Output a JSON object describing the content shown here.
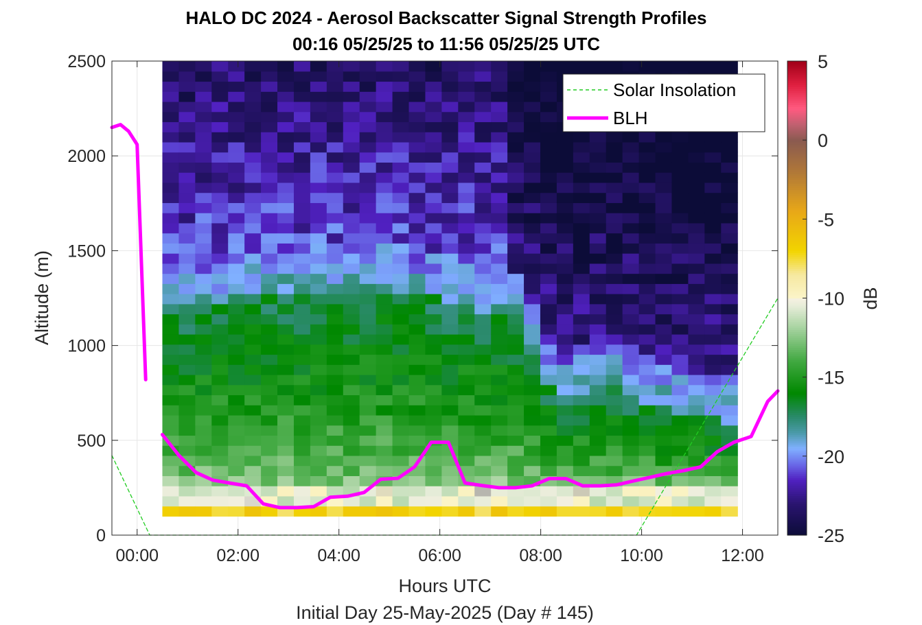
{
  "chart_data": {
    "type": "heatmap",
    "title": "HALO DC 2024 - Aerosol Backscatter Signal Strength Profiles",
    "subtitle": "00:16 05/25/25 to 11:56 05/25/25  UTC",
    "xlabel": "Hours UTC",
    "xlabel2": "Initial Day 25-May-2025 (Day # 145)",
    "ylabel": "Altitude (m)",
    "xlim": [
      -0.5,
      12.7
    ],
    "ylim": [
      0,
      2500
    ],
    "xticks": [
      0,
      2,
      4,
      6,
      8,
      10,
      12
    ],
    "xtick_labels": [
      "00:00",
      "02:00",
      "04:00",
      "06:00",
      "08:00",
      "10:00",
      "12:00"
    ],
    "yticks": [
      0,
      500,
      1000,
      1500,
      2000,
      2500
    ],
    "ytick_labels": [
      "0",
      "500",
      "1000",
      "1500",
      "2000",
      "2500"
    ],
    "grid": true,
    "colorbar": {
      "label": "dB",
      "range": [
        -25,
        5
      ],
      "ticks": [
        5,
        0,
        -5,
        -10,
        -15,
        -20,
        -25
      ],
      "tick_labels": [
        "5",
        "0",
        "-5",
        "-10",
        "-15",
        "-20",
        "-25"
      ],
      "stops": [
        {
          "v": -25,
          "c": "#0c0c38"
        },
        {
          "v": -23,
          "c": "#2a1470"
        },
        {
          "v": -21.5,
          "c": "#5020c0"
        },
        {
          "v": -20.5,
          "c": "#6a6ae8"
        },
        {
          "v": -19.5,
          "c": "#80b0ff"
        },
        {
          "v": -18.5,
          "c": "#4a9aa8"
        },
        {
          "v": -17.5,
          "c": "#2a8a6a"
        },
        {
          "v": -16,
          "c": "#008800"
        },
        {
          "v": -14,
          "c": "#40a840"
        },
        {
          "v": -12,
          "c": "#a0d09a"
        },
        {
          "v": -10.5,
          "c": "#e6ecd8"
        },
        {
          "v": -10.05,
          "c": "#f4f0e0"
        },
        {
          "v": -10,
          "c": "#a8a8a8"
        },
        {
          "v": -9.95,
          "c": "#fbf4c8"
        },
        {
          "v": -8.5,
          "c": "#f6e8a0"
        },
        {
          "v": -7,
          "c": "#f2d400"
        },
        {
          "v": -4.5,
          "c": "#e8a818"
        },
        {
          "v": -2,
          "c": "#b07838"
        },
        {
          "v": 0,
          "c": "#8a5a50"
        },
        {
          "v": 1,
          "c": "#c06070"
        },
        {
          "v": 2,
          "c": "#ff5a80"
        },
        {
          "v": 3.5,
          "c": "#e02040"
        },
        {
          "v": 5,
          "c": "#a00018"
        }
      ]
    },
    "heatmap": {
      "x_start": 0.5,
      "x_end": 11.9,
      "columns": 35,
      "y_start": 100,
      "y_end": 2500,
      "rows": 45
    },
    "series": [
      {
        "name": "Solar Insolation",
        "style": "dashed",
        "color": "#22cc22",
        "segments": [
          [
            [
              -0.5,
              420
            ],
            [
              0.25,
              0
            ],
            [
              9.9,
              0
            ],
            [
              12.7,
              1250
            ]
          ]
        ]
      },
      {
        "name": "BLH",
        "style": "solid",
        "color": "#ff00ff",
        "segments": [
          [
            [
              -0.5,
              2150
            ],
            [
              -0.33,
              2165
            ],
            [
              -0.17,
              2130
            ],
            [
              0.0,
              2060
            ],
            [
              0.17,
              820
            ]
          ],
          [
            [
              0.5,
              530
            ],
            [
              0.83,
              420
            ],
            [
              1.17,
              330
            ],
            [
              1.5,
              290
            ],
            [
              1.83,
              275
            ],
            [
              2.17,
              260
            ],
            [
              2.5,
              165
            ],
            [
              2.83,
              145
            ],
            [
              3.17,
              145
            ],
            [
              3.5,
              150
            ],
            [
              3.83,
              200
            ],
            [
              4.17,
              205
            ],
            [
              4.5,
              225
            ],
            [
              4.83,
              295
            ],
            [
              5.17,
              300
            ],
            [
              5.5,
              360
            ],
            [
              5.83,
              490
            ],
            [
              6.17,
              490
            ],
            [
              6.5,
              275
            ],
            [
              6.83,
              262
            ],
            [
              7.17,
              250
            ],
            [
              7.5,
              250
            ],
            [
              7.83,
              260
            ],
            [
              8.17,
              298
            ],
            [
              8.5,
              298
            ],
            [
              8.83,
              260
            ],
            [
              9.17,
              260
            ],
            [
              9.5,
              265
            ],
            [
              9.83,
              285
            ],
            [
              10.17,
              305
            ],
            [
              10.5,
              325
            ],
            [
              10.83,
              340
            ],
            [
              11.17,
              360
            ],
            [
              11.5,
              440
            ],
            [
              11.83,
              490
            ],
            [
              12.17,
              520
            ],
            [
              12.5,
              705
            ],
            [
              12.7,
              760
            ]
          ]
        ]
      }
    ],
    "legend": {
      "placement": "top-right",
      "entries": [
        "Solar Insolation",
        "BLH"
      ]
    }
  }
}
